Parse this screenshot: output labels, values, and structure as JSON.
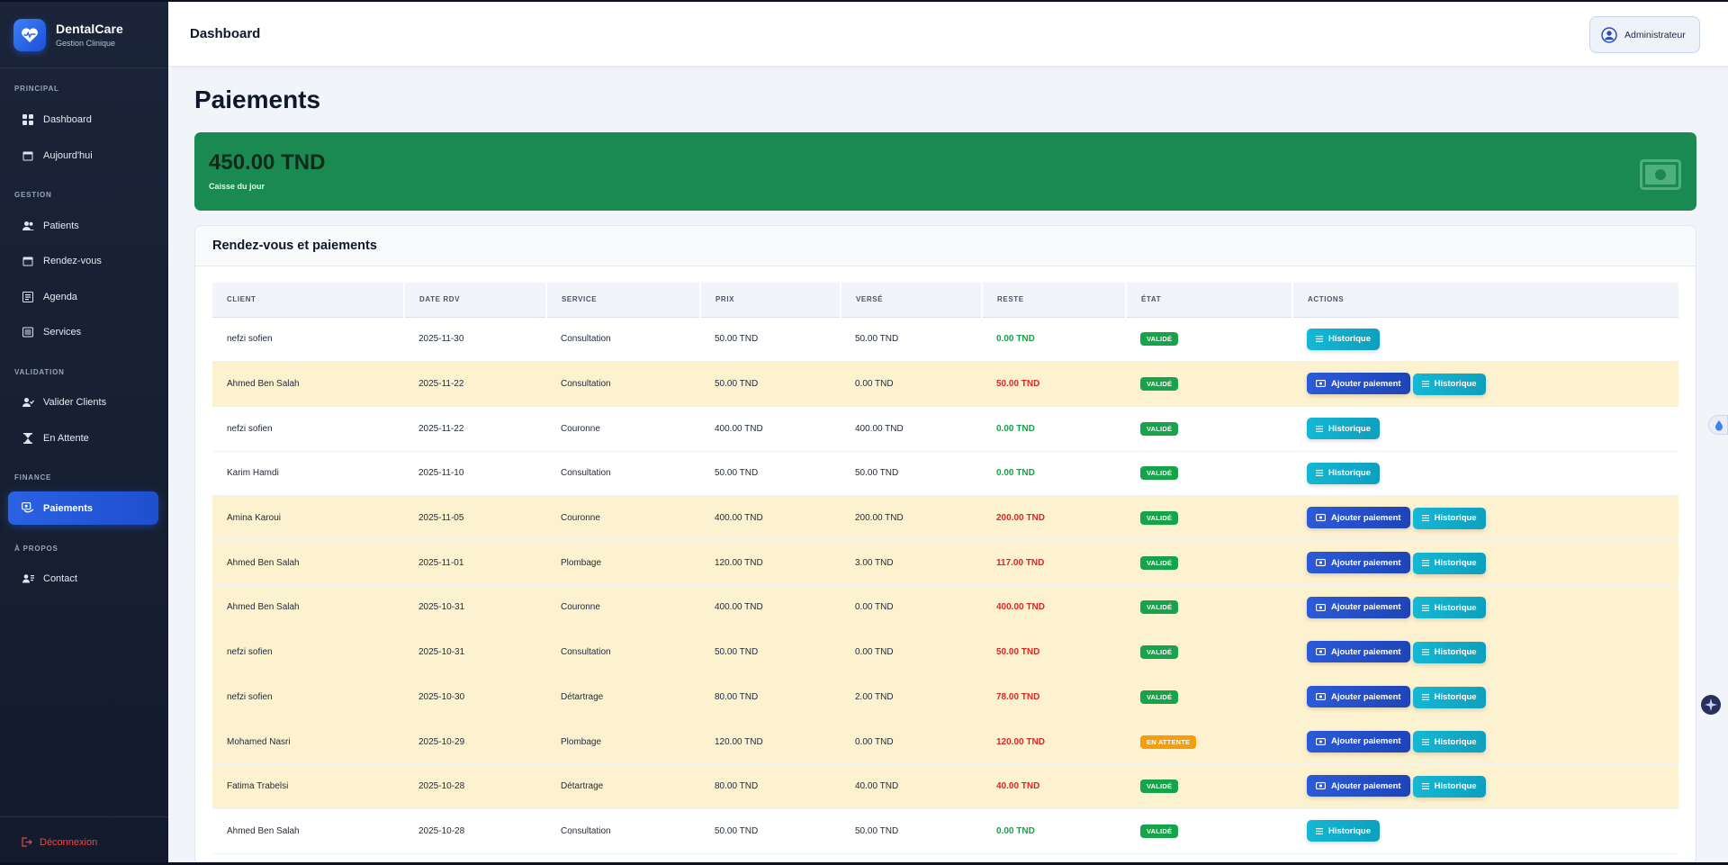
{
  "brand": {
    "name": "DentalCare",
    "subtitle": "Gestion Clinique"
  },
  "sidebar": {
    "sections": [
      "PRINCIPAL",
      "GESTION",
      "VALIDATION",
      "FINANCE",
      "À PROPOS"
    ],
    "items": [
      {
        "label": "Dashboard",
        "icon": "grid-icon"
      },
      {
        "label": "Aujourd'hui",
        "icon": "calendar-icon"
      },
      {
        "label": "Patients",
        "icon": "users-icon"
      },
      {
        "label": "Rendez-vous",
        "icon": "calendar-icon"
      },
      {
        "label": "Agenda",
        "icon": "book-icon"
      },
      {
        "label": "Services",
        "icon": "list-icon"
      },
      {
        "label": "Valider Clients",
        "icon": "user-check-icon"
      },
      {
        "label": "En Attente",
        "icon": "hourglass-icon"
      },
      {
        "label": "Paiements",
        "icon": "money-icon",
        "active": true
      },
      {
        "label": "Contact",
        "icon": "contact-icon"
      }
    ],
    "logout": "Déconnexion"
  },
  "header": {
    "title": "Dashboard",
    "user": "Administrateur"
  },
  "page": {
    "title": "Paiements"
  },
  "cash": {
    "amount": "450.00 TND",
    "label": "Caisse du jour"
  },
  "panel": {
    "title": "Rendez-vous et paiements"
  },
  "table": {
    "columns": [
      "CLIENT",
      "DATE RDV",
      "SERVICE",
      "PRIX",
      "VERSÉ",
      "RESTE",
      "ÉTAT",
      "ACTIONS"
    ],
    "pay_label": "Ajouter paiement",
    "history_label": "Historique",
    "rows": [
      {
        "client": "nefzi sofien",
        "date": "2025-11-30",
        "service": "Consultation",
        "prix": "50.00 TND",
        "verse": "50.00 TND",
        "reste": "0.00 TND",
        "etat": "VALIDÉ",
        "pending": false,
        "paid": true
      },
      {
        "client": "Ahmed Ben Salah",
        "date": "2025-11-22",
        "service": "Consultation",
        "prix": "50.00 TND",
        "verse": "0.00 TND",
        "reste": "50.00 TND",
        "etat": "VALIDÉ",
        "pending": false,
        "paid": false
      },
      {
        "client": "nefzi sofien",
        "date": "2025-11-22",
        "service": "Couronne",
        "prix": "400.00 TND",
        "verse": "400.00 TND",
        "reste": "0.00 TND",
        "etat": "VALIDÉ",
        "pending": false,
        "paid": true
      },
      {
        "client": "Karim Hamdi",
        "date": "2025-11-10",
        "service": "Consultation",
        "prix": "50.00 TND",
        "verse": "50.00 TND",
        "reste": "0.00 TND",
        "etat": "VALIDÉ",
        "pending": false,
        "paid": true
      },
      {
        "client": "Amina Karoui",
        "date": "2025-11-05",
        "service": "Couronne",
        "prix": "400.00 TND",
        "verse": "200.00 TND",
        "reste": "200.00 TND",
        "etat": "VALIDÉ",
        "pending": false,
        "paid": false
      },
      {
        "client": "Ahmed Ben Salah",
        "date": "2025-11-01",
        "service": "Plombage",
        "prix": "120.00 TND",
        "verse": "3.00 TND",
        "reste": "117.00 TND",
        "etat": "VALIDÉ",
        "pending": false,
        "paid": false
      },
      {
        "client": "Ahmed Ben Salah",
        "date": "2025-10-31",
        "service": "Couronne",
        "prix": "400.00 TND",
        "verse": "0.00 TND",
        "reste": "400.00 TND",
        "etat": "VALIDÉ",
        "pending": false,
        "paid": false
      },
      {
        "client": "nefzi sofien",
        "date": "2025-10-31",
        "service": "Consultation",
        "prix": "50.00 TND",
        "verse": "0.00 TND",
        "reste": "50.00 TND",
        "etat": "VALIDÉ",
        "pending": false,
        "paid": false
      },
      {
        "client": "nefzi sofien",
        "date": "2025-10-30",
        "service": "Détartrage",
        "prix": "80.00 TND",
        "verse": "2.00 TND",
        "reste": "78.00 TND",
        "etat": "VALIDÉ",
        "pending": false,
        "paid": false
      },
      {
        "client": "Mohamed Nasri",
        "date": "2025-10-29",
        "service": "Plombage",
        "prix": "120.00 TND",
        "verse": "0.00 TND",
        "reste": "120.00 TND",
        "etat": "EN ATTENTE",
        "pending": true,
        "paid": false
      },
      {
        "client": "Fatima Trabelsi",
        "date": "2025-10-28",
        "service": "Détartrage",
        "prix": "80.00 TND",
        "verse": "40.00 TND",
        "reste": "40.00 TND",
        "etat": "VALIDÉ",
        "pending": false,
        "paid": false
      },
      {
        "client": "Ahmed Ben Salah",
        "date": "2025-10-28",
        "service": "Consultation",
        "prix": "50.00 TND",
        "verse": "50.00 TND",
        "reste": "0.00 TND",
        "etat": "VALIDÉ",
        "pending": false,
        "paid": true
      }
    ]
  },
  "colors": {
    "primary": "#2b61e3",
    "cash_bg": "#1a8a52",
    "success": "#16a34a",
    "danger": "#dc2626",
    "warning": "#f59e0b",
    "info": "#14b8d4",
    "unpaid_row": "#fdf2cf"
  }
}
